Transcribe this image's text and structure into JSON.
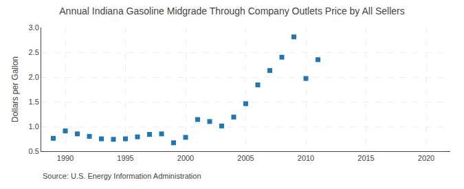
{
  "chart_data": {
    "type": "scatter",
    "title": "Annual Indiana Gasoline Midgrade Through Company Outlets Price by All Sellers",
    "y_label": "Dollars per Gallon",
    "annotations": [
      "Source: U.S. Energy Information Administration"
    ],
    "x": [
      1989,
      1990,
      1991,
      1992,
      1993,
      1994,
      1995,
      1996,
      1997,
      1998,
      1999,
      2000,
      2001,
      2002,
      2003,
      2004,
      2005,
      2006,
      2007,
      2008,
      2009,
      2010,
      2011
    ],
    "values": [
      0.76,
      0.91,
      0.85,
      0.8,
      0.75,
      0.74,
      0.75,
      0.79,
      0.84,
      0.85,
      0.67,
      0.78,
      1.14,
      1.1,
      1.01,
      1.19,
      1.46,
      1.84,
      2.13,
      2.4,
      2.81,
      1.97,
      2.35
    ],
    "marker": "square",
    "xlim": [
      1988,
      2022
    ],
    "ylim": [
      0.5,
      3.0
    ],
    "xticks": [
      1990,
      1995,
      2000,
      2005,
      2010,
      2015,
      2020
    ],
    "yticks": [
      0.5,
      {
        "value": 1.0,
        "label": "1.0"
      },
      1.5,
      {
        "value": 2.0,
        "label": "2.0"
      },
      2.5,
      {
        "value": 3.0,
        "label": "3.0"
      }
    ],
    "grid": true
  }
}
